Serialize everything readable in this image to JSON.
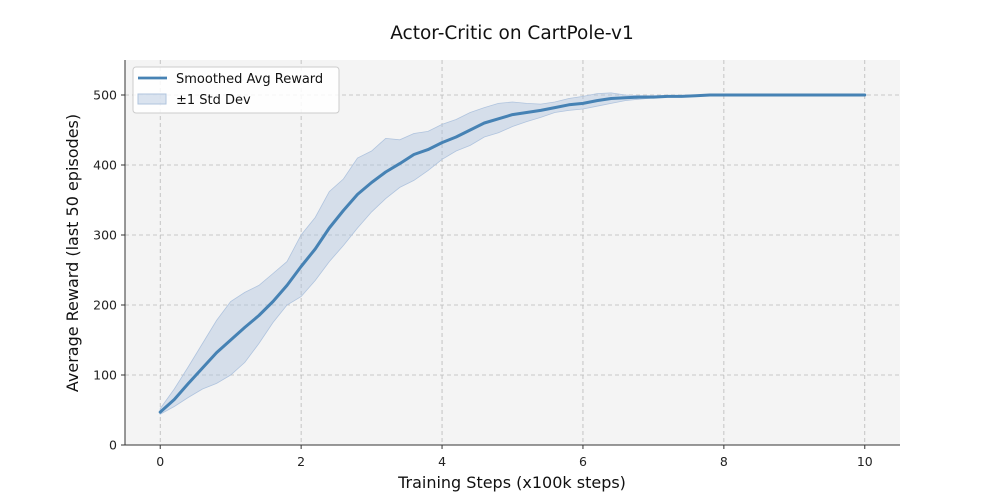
{
  "chart_data": {
    "type": "line",
    "title": "Actor-Critic on CartPole-v1",
    "xlabel": "Training Steps (x100k steps)",
    "ylabel": "Average Reward (last 50 episodes)",
    "xlim": [
      -0.5,
      10.5
    ],
    "ylim": [
      0,
      550
    ],
    "xticks": [
      0,
      2,
      4,
      6,
      8,
      10
    ],
    "yticks": [
      0,
      100,
      200,
      300,
      400,
      500
    ],
    "grid": true,
    "legend_position": "top-left",
    "colors": {
      "line": "#4682b4",
      "band": "#b0c4de",
      "plot_bg": "#f4f4f4"
    },
    "x": [
      0,
      0.2,
      0.4,
      0.6,
      0.8,
      1.0,
      1.2,
      1.4,
      1.6,
      1.8,
      2.0,
      2.2,
      2.4,
      2.6,
      2.8,
      3.0,
      3.2,
      3.4,
      3.6,
      3.8,
      4.0,
      4.2,
      4.4,
      4.6,
      4.8,
      5.0,
      5.2,
      5.4,
      5.6,
      5.8,
      6.0,
      6.2,
      6.4,
      6.6,
      6.8,
      7.0,
      7.2,
      7.4,
      7.6,
      7.8,
      8.0,
      8.5,
      9.0,
      9.5,
      10.0
    ],
    "series": [
      {
        "name": "Smoothed Avg Reward",
        "values": [
          47,
          65,
          88,
          110,
          132,
          150,
          168,
          185,
          205,
          228,
          255,
          280,
          310,
          335,
          358,
          375,
          390,
          402,
          415,
          422,
          432,
          440,
          450,
          460,
          466,
          472,
          475,
          478,
          482,
          486,
          488,
          492,
          495,
          496,
          497,
          497,
          498,
          498,
          499,
          500,
          500,
          500,
          500,
          500,
          500
        ]
      },
      {
        "name": "±1 Std Dev",
        "upper": [
          52,
          80,
          112,
          145,
          178,
          205,
          218,
          228,
          245,
          262,
          300,
          325,
          362,
          380,
          410,
          420,
          438,
          436,
          445,
          448,
          458,
          465,
          475,
          482,
          488,
          490,
          488,
          487,
          490,
          495,
          498,
          502,
          503,
          500,
          499,
          499,
          499,
          499,
          500,
          501,
          501,
          501,
          500,
          500,
          500
        ],
        "lower": [
          44,
          55,
          68,
          80,
          88,
          100,
          118,
          145,
          175,
          200,
          212,
          235,
          262,
          285,
          310,
          333,
          352,
          368,
          378,
          392,
          408,
          420,
          428,
          440,
          446,
          455,
          462,
          468,
          475,
          478,
          480,
          484,
          488,
          492,
          494,
          496,
          497,
          497,
          498,
          499,
          499,
          499,
          499,
          500,
          500
        ]
      }
    ]
  }
}
